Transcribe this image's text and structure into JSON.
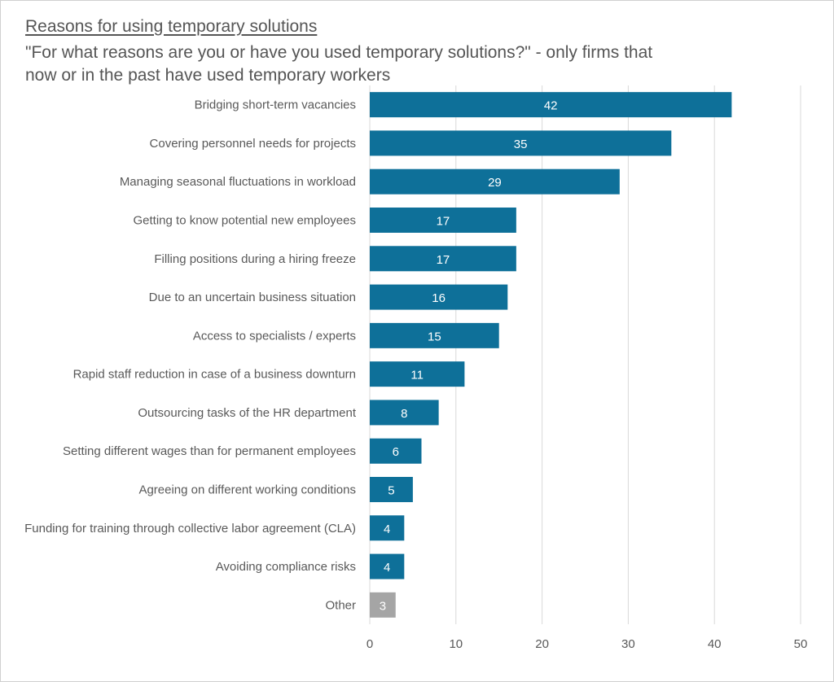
{
  "chart_data": {
    "type": "bar",
    "orientation": "horizontal",
    "title": "Reasons for using temporary solutions",
    "subtitle": "\"For what reasons are you or have you used temporary solutions?\" - only firms that now or in the past have used temporary workers",
    "categories": [
      "Bridging short-term vacancies",
      "Covering personnel needs for projects",
      "Managing seasonal fluctuations in workload",
      "Getting to know potential new employees",
      "Filling positions during a hiring freeze",
      "Due to an uncertain business situation",
      "Access to specialists / experts",
      "Rapid staff reduction in case of a business downturn",
      "Outsourcing tasks of the HR department",
      "Setting different wages than for permanent employees",
      "Agreeing on different working conditions",
      "Funding for training through collective labor agreement (CLA)",
      "Avoiding compliance risks",
      "Other"
    ],
    "values": [
      42,
      35,
      29,
      17,
      17,
      16,
      15,
      11,
      8,
      6,
      5,
      4,
      4,
      3
    ],
    "xlim": [
      0,
      50
    ],
    "xticks": [
      0,
      10,
      20,
      30,
      40,
      50
    ],
    "grid": true,
    "data_labels": true,
    "colors": {
      "bar": "#0e7099",
      "other_bar": "#a5a5a5",
      "grid": "#d9d9d9",
      "text": "#595959"
    }
  }
}
